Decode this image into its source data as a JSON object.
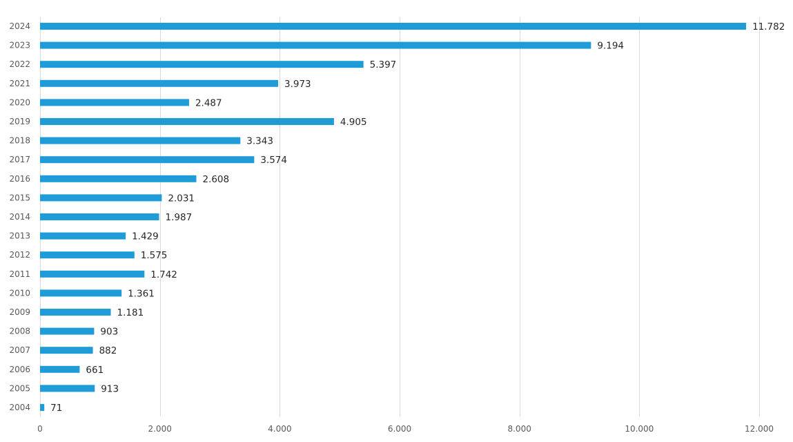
{
  "chart_data": {
    "type": "bar",
    "orientation": "horizontal",
    "title": "",
    "xlabel": "",
    "ylabel": "",
    "categories": [
      "2024",
      "2023",
      "2022",
      "2021",
      "2020",
      "2019",
      "2018",
      "2017",
      "2016",
      "2015",
      "2014",
      "2013",
      "2012",
      "2011",
      "2010",
      "2009",
      "2008",
      "2007",
      "2006",
      "2005",
      "2004"
    ],
    "values": [
      11782,
      9194,
      5397,
      3973,
      2487,
      4905,
      3343,
      3574,
      2608,
      2031,
      1987,
      1429,
      1575,
      1742,
      1361,
      1181,
      903,
      882,
      661,
      913,
      71
    ],
    "value_labels": [
      "11.782",
      "9.194",
      "5.397",
      "3.973",
      "2.487",
      "4.905",
      "3.343",
      "3.574",
      "2.608",
      "2.031",
      "1.987",
      "1.429",
      "1.575",
      "1.742",
      "1.361",
      "1.181",
      "903",
      "882",
      "661",
      "913",
      "71"
    ],
    "xlim": [
      0,
      12000
    ],
    "xticks": [
      0,
      2000,
      4000,
      6000,
      8000,
      10000,
      12000
    ],
    "xtick_labels": [
      "0",
      "2.000",
      "4.000",
      "6.000",
      "8.000",
      "10.000",
      "12.000"
    ],
    "grid": true,
    "bar_color": "#1f9bd7",
    "grid_color": "#d9d9d9"
  }
}
